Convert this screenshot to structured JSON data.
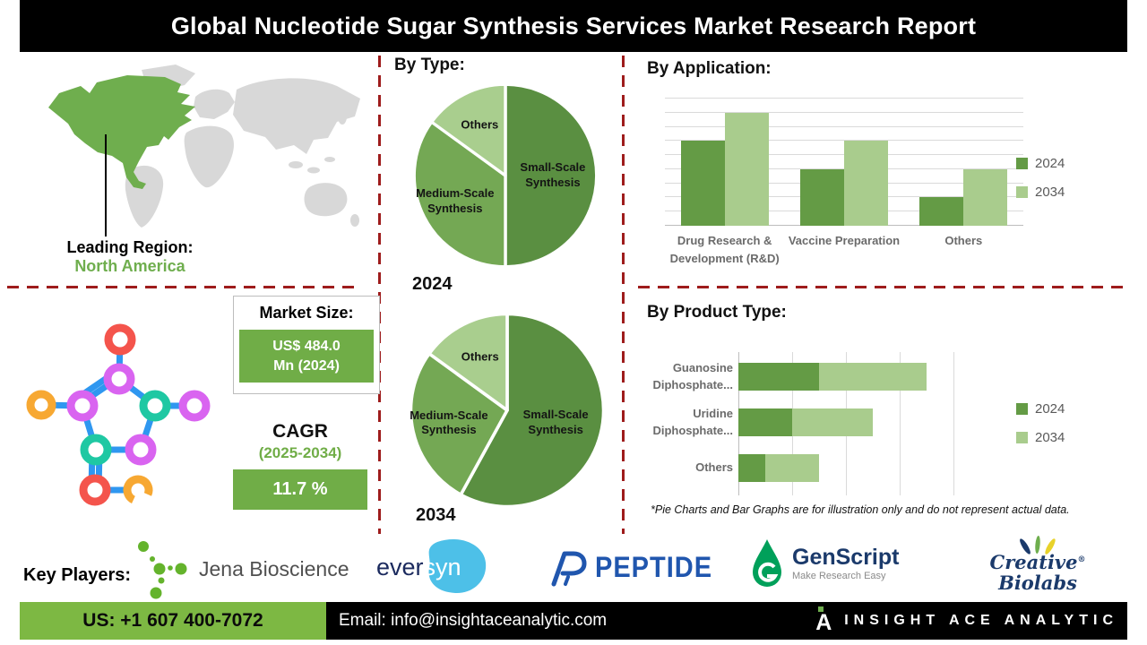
{
  "title": "Global Nucleotide Sugar Synthesis Services Market Research Report",
  "sections": {
    "by_type": "By Type:"
  },
  "leading_region": {
    "label": "Leading Region:",
    "value": "North America"
  },
  "market_size": {
    "label": "Market Size:",
    "value_line1": "US$ 484.0",
    "value_line2": "Mn (2024)"
  },
  "cagr": {
    "label": "CAGR",
    "period": "(2025-2034)",
    "value": "11.7 %"
  },
  "footnote": "*Pie Charts and Bar Graphs are for illustration only and do not represent actual data.",
  "key_players": {
    "label": "Key Players:",
    "players": [
      {
        "name": "Jena Bioscience"
      },
      {
        "name": "eversyn",
        "parts": [
          "ever",
          "syn"
        ]
      },
      {
        "name": "PEPTIDE"
      },
      {
        "name": "GenScript",
        "tagline": "Make Research Easy"
      },
      {
        "name": "Creative Biolabs",
        "lines": [
          "Creative",
          "Biolabs"
        ],
        "registered": "®"
      }
    ]
  },
  "footer": {
    "phone": "US: +1 607 400-7072",
    "email": "Email: info@insightaceanalytic.com",
    "brand": "INSIGHT ACE ANALYTIC"
  },
  "colors": {
    "dashed_red": "#9e1c1c",
    "green_box": "#70ad47",
    "footer_green": "#7db843",
    "map_highlight": "#6fae4e",
    "map_grey": "#d8d8d8"
  },
  "chart_data": [
    {
      "type": "pie",
      "year_label": "2024",
      "labels": [
        "Small-Scale Synthesis",
        "Medium-Scale Synthesis",
        "Others"
      ],
      "values": [
        50,
        35,
        15
      ],
      "colors": [
        "#5a8f41",
        "#74a854",
        "#a9ce8e"
      ]
    },
    {
      "type": "pie",
      "year_label": "2034",
      "labels": [
        "Small-Scale Synthesis",
        "Medium-Scale Synthesis",
        "Others"
      ],
      "values": [
        58,
        27,
        15
      ],
      "colors": [
        "#5a8f41",
        "#74a854",
        "#a9ce8e"
      ]
    },
    {
      "type": "bar",
      "title": "By Application:",
      "categories": [
        "Drug Research & Development (R&D)",
        "Vaccine Preparation",
        "Others"
      ],
      "series": [
        {
          "name": "2024",
          "color": "#649b45",
          "values": [
            6,
            4,
            2
          ]
        },
        {
          "name": "2034",
          "color": "#a9cc8d",
          "values": [
            8,
            6,
            4
          ]
        }
      ],
      "ylim": [
        0,
        9
      ],
      "grid": true,
      "legend_position": "right"
    },
    {
      "type": "stacked-bar-horizontal",
      "title": "By Product Type:",
      "categories": [
        "Guanosine Diphosphate...",
        "Uridine Diphosphate...",
        "Others"
      ],
      "series": [
        {
          "name": "2024",
          "color": "#649b45",
          "values": [
            1.5,
            1.0,
            0.5
          ]
        },
        {
          "name": "2034",
          "color": "#a9cc8d",
          "values": [
            2.0,
            1.5,
            1.0
          ]
        }
      ],
      "xlim": [
        0,
        4
      ],
      "grid": true,
      "legend_position": "right"
    }
  ]
}
